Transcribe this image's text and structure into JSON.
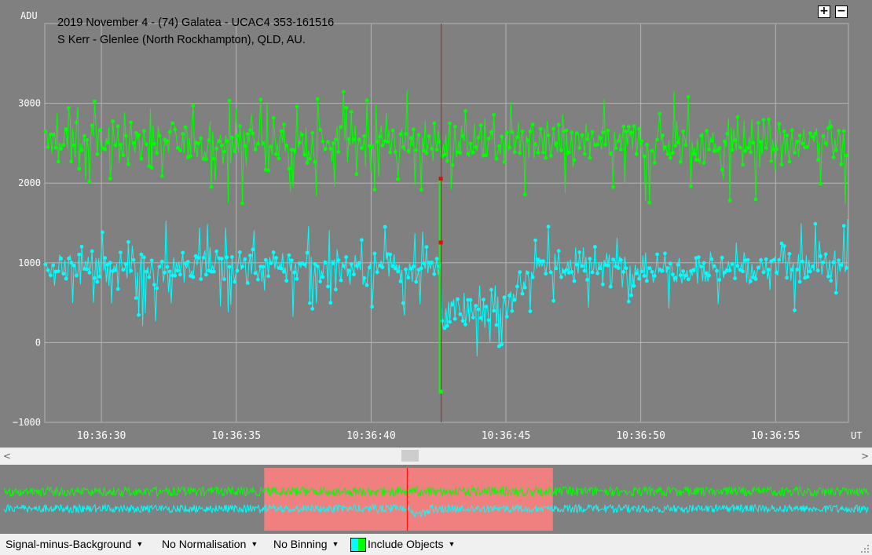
{
  "title": {
    "line1": "2019 November 4 - (74) Galatea - UCAC4 353-161516",
    "line2": "S Kerr - Glenlee (North Rockhampton), QLD, AU."
  },
  "zoom": {
    "plus": "+",
    "minus": "−"
  },
  "colors": {
    "plot_bg": "#808080",
    "grid": "#b4b4b4",
    "target": "#00ffff",
    "comparison": "#00ff00",
    "cursor": "#ff0000",
    "selection": "#f08080"
  },
  "chart_data": {
    "type": "line",
    "ylabel": "ADU",
    "xlabel": "UT",
    "ylim": [
      -1000,
      4000
    ],
    "xlim": [
      "10:36:27.9",
      "10:36:57.7"
    ],
    "y_ticks": [
      "3000",
      "2000",
      "1000",
      "0",
      "−1000"
    ],
    "x_ticks": [
      "10:36:30",
      "10:36:35",
      "10:36:40",
      "10:36:45",
      "10:36:50",
      "10:36:55"
    ],
    "cursor_time": "10:36:42.6",
    "series": [
      {
        "role": "comparison",
        "color": "#00ff00",
        "baseline": 2500,
        "scatter": 250,
        "values_summary": "noisy around 2500 ADU, range ~1900–3300"
      },
      {
        "role": "target",
        "color": "#00ffff",
        "baseline": 950,
        "scatter": 200,
        "values_summary": "noisy around 950 ADU; occultation dip to ~350 ADU from 10:36:42.6 to 10:36:44.8",
        "dip": {
          "start": "10:36:42.6",
          "end": "10:36:44.8",
          "level": 350
        }
      }
    ],
    "cursor_markers": [
      {
        "role": "comparison",
        "y": 2050
      },
      {
        "role": "target",
        "y": 1250
      },
      {
        "role": "target-low",
        "y": -620
      }
    ]
  },
  "overview": {
    "selection_fraction_start": 0.303,
    "selection_fraction_end": 0.634,
    "cursor_fraction": 0.467
  },
  "scroll": {
    "left_arrow": "<",
    "right_arrow": ">",
    "thumb_fraction": 0.47
  },
  "toolbar": {
    "mode": "Signal-minus-Background",
    "normalisation": "No Normalisation",
    "binning": "No Binning",
    "objects": "Include Objects",
    "caret": "▼"
  }
}
